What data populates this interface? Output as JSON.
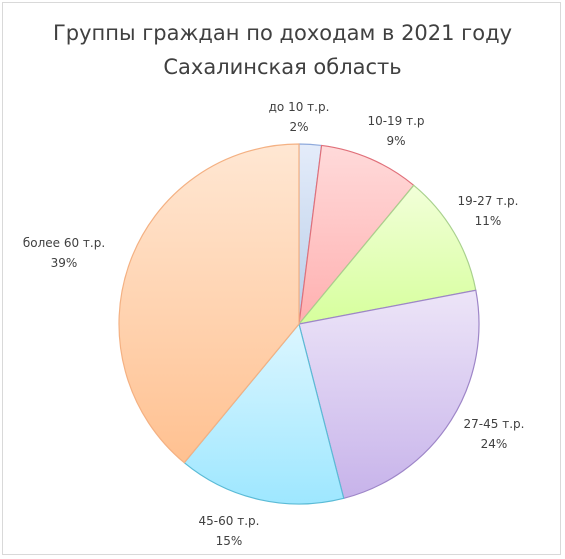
{
  "chart_data": {
    "type": "pie",
    "title": "Группы граждан по доходам в 2021 году",
    "subtitle": "Сахалинская область",
    "categories": [
      "до 10 т.р.",
      "10-19 т.р",
      "19-27 т.р.",
      "27-45 т.р.",
      "45-60 т.р.",
      "более 60 т.р."
    ],
    "values": [
      2,
      9,
      11,
      24,
      15,
      39
    ],
    "value_labels": [
      "2%",
      "9%",
      "11%",
      "24%",
      "15%",
      "39%"
    ],
    "start_angle_deg": 0,
    "direction": "clockwise",
    "legend": "none",
    "colors": {
      "fills_light": [
        "#e4ecfa",
        "#ffdada",
        "#f2ffd9",
        "#ede5f8",
        "#dcf6ff",
        "#ffe7d3"
      ],
      "fills_dark": [
        "#b8cde8",
        "#ffb0b0",
        "#d6ff9c",
        "#c7b3ea",
        "#9ee7ff",
        "#ffc191"
      ],
      "strokes": [
        "#8faadc",
        "#e0707a",
        "#a9d18e",
        "#9e86c8",
        "#5bbbd6",
        "#f4b183"
      ]
    }
  }
}
